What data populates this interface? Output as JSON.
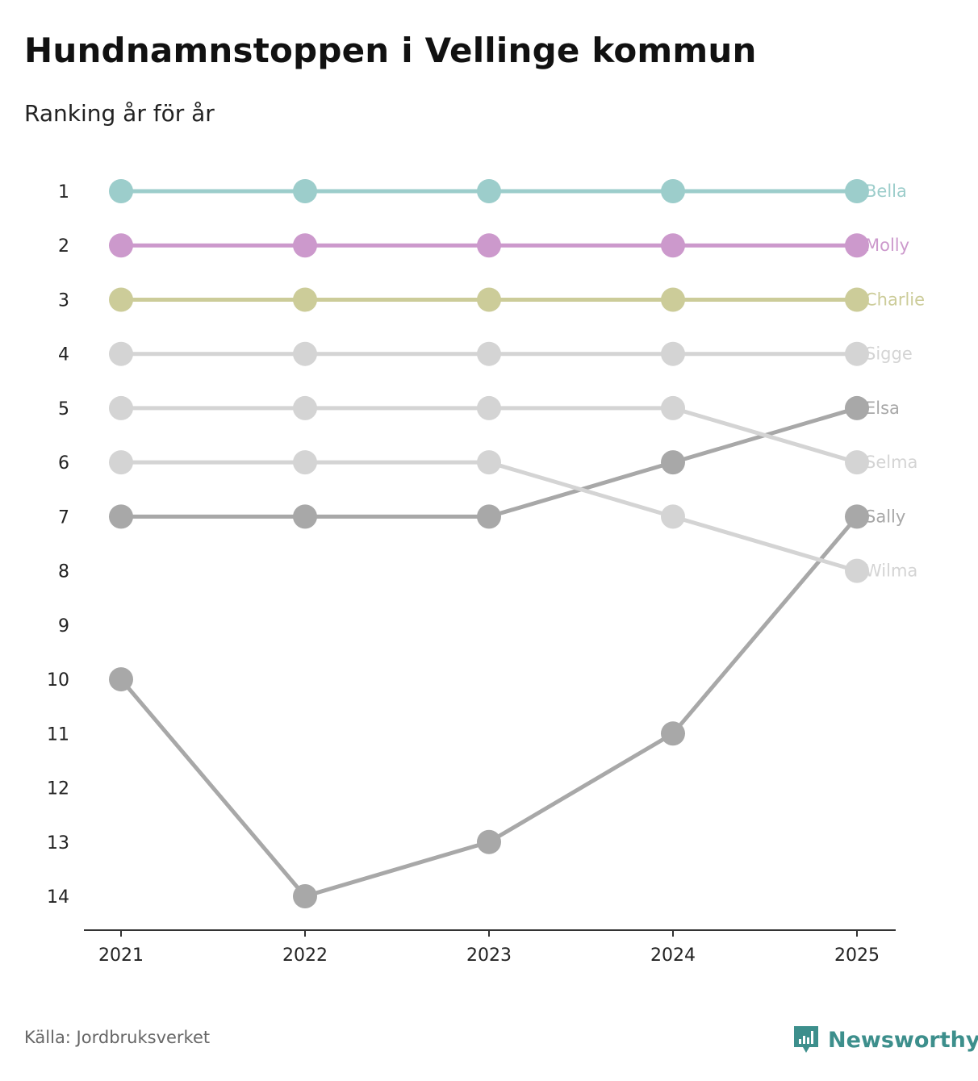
{
  "title": "Hundnamnstoppen i Vellinge kommun",
  "subtitle": "Ranking år för år",
  "source": "Källa: Jordbruksverket",
  "brand": {
    "name": "Newsworthy",
    "icon": "newsworthy-logo-icon",
    "color": "#3d8f8c"
  },
  "chart_data": {
    "type": "line",
    "title": "Hundnamnstoppen i Vellinge kommun",
    "subtitle": "Ranking år för år",
    "xlabel": "",
    "ylabel": "",
    "x": [
      "2021",
      "2022",
      "2023",
      "2024",
      "2025"
    ],
    "ylim": [
      1,
      14
    ],
    "y_inverted": true,
    "y_ticks": [
      "1",
      "2",
      "3",
      "4",
      "5",
      "6",
      "7",
      "8",
      "9",
      "10",
      "11",
      "12",
      "13",
      "14"
    ],
    "grid": false,
    "legend": "direct labels at right end",
    "series": [
      {
        "name": "Bella",
        "values": [
          1,
          1,
          1,
          1,
          1
        ],
        "color": "#9ccdcb"
      },
      {
        "name": "Molly",
        "values": [
          2,
          2,
          2,
          2,
          2
        ],
        "color": "#cc99cc"
      },
      {
        "name": "Charlie",
        "values": [
          3,
          3,
          3,
          3,
          3
        ],
        "color": "#cccc99"
      },
      {
        "name": "Sigge",
        "values": [
          4,
          4,
          4,
          4,
          4
        ],
        "color": "#d4d4d4"
      },
      {
        "name": "Selma",
        "values": [
          5,
          5,
          5,
          5,
          6
        ],
        "color": "#d4d4d4"
      },
      {
        "name": "Wilma",
        "values": [
          6,
          6,
          6,
          7,
          8
        ],
        "color": "#d4d4d4"
      },
      {
        "name": "Elsa",
        "values": [
          7,
          7,
          7,
          6,
          5
        ],
        "color": "#a8a8a8"
      },
      {
        "name": "Sally",
        "values": [
          10,
          14,
          13,
          11,
          7
        ],
        "color": "#a8a8a8"
      }
    ]
  }
}
